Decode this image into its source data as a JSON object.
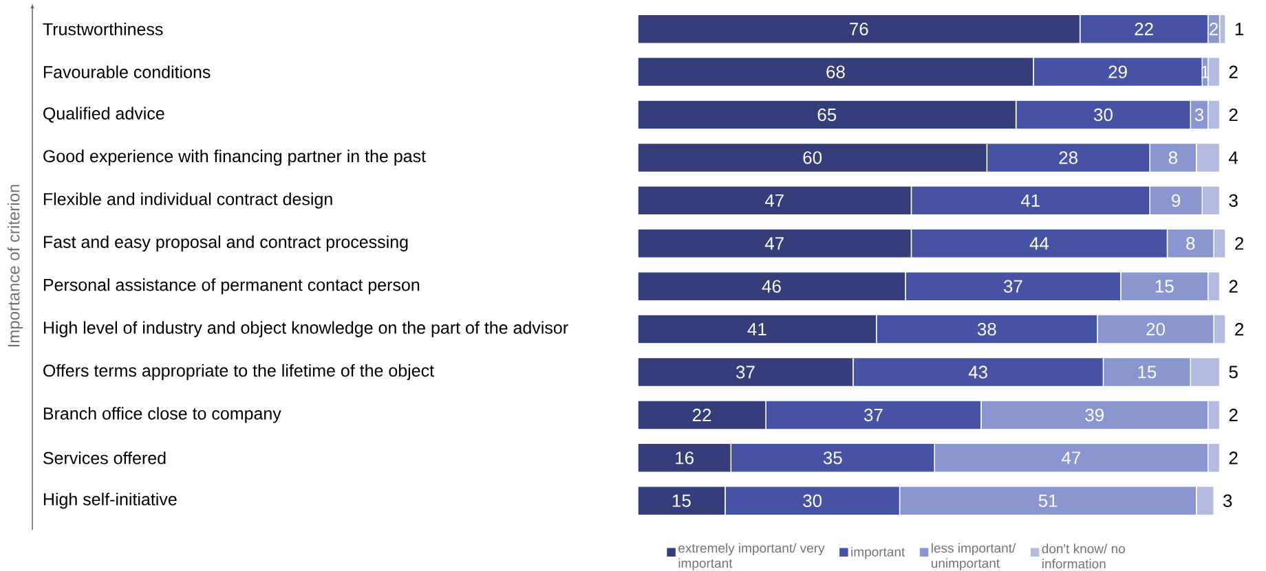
{
  "chart_data": {
    "type": "bar",
    "orientation": "horizontal",
    "stacked": true,
    "data_labels": true,
    "legend": "bottom",
    "annotations": [
      "Importance of criterion"
    ],
    "categories": [
      "Trustworthiness",
      "Favourable conditions",
      "Qualified advice",
      "Good experience with financing partner in the past",
      "Flexible and individual contract design",
      "Fast and easy proposal and contract processing",
      "Personal assistance of permanent contact person",
      "High level of industry and object knowledge on the part of the advisor",
      "Offers terms appropriate to the lifetime of the object",
      "Branch office close to company",
      "Services offered",
      "High self-initiative"
    ],
    "series": [
      {
        "name": "extremely important/ very important",
        "color": "#353d7a",
        "values": [
          76,
          68,
          65,
          60,
          47,
          47,
          46,
          41,
          37,
          22,
          16,
          15
        ]
      },
      {
        "name": "important",
        "color": "#4653a4",
        "values": [
          22,
          29,
          30,
          28,
          41,
          44,
          37,
          38,
          43,
          37,
          35,
          30
        ]
      },
      {
        "name": "less important/ unimportant",
        "color": "#8a96cf",
        "values": [
          2,
          1,
          3,
          8,
          9,
          8,
          15,
          20,
          15,
          39,
          47,
          51
        ]
      },
      {
        "name": "don't know/ no information",
        "color": "#b3bbe0",
        "values": [
          1,
          2,
          2,
          4,
          3,
          2,
          2,
          2,
          5,
          2,
          2,
          3
        ]
      }
    ]
  }
}
